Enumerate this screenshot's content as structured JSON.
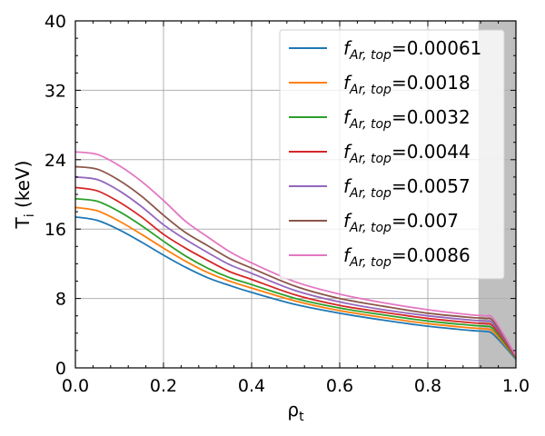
{
  "chart_data": {
    "type": "line",
    "title": "",
    "xlabel": "ρ_t",
    "xlabel_main": "ρ",
    "xlabel_sub": "t",
    "ylabel": "T_i (keV)",
    "ylabel_main": "T",
    "ylabel_sub": "i",
    "ylabel_rest": " (keV)",
    "xlim": [
      0.0,
      1.0
    ],
    "ylim": [
      0,
      40
    ],
    "x_ticks": [
      0.0,
      0.2,
      0.4,
      0.6,
      0.8,
      1.0
    ],
    "x_tick_labels": [
      "0.0",
      "0.2",
      "0.4",
      "0.6",
      "0.8",
      "1.0"
    ],
    "y_ticks": [
      0,
      8,
      16,
      24,
      32,
      40
    ],
    "y_tick_labels": [
      "0",
      "8",
      "16",
      "24",
      "32",
      "40"
    ],
    "grid": true,
    "shaded_region": {
      "x_from": 0.915,
      "x_to": 1.0,
      "color": "#bfbfbf"
    },
    "legend_position": "upper-right",
    "legend_prefix": "f",
    "legend_subscript": "Ar, top",
    "x": [
      0.0,
      0.05,
      0.1,
      0.15,
      0.2,
      0.25,
      0.3,
      0.35,
      0.4,
      0.5,
      0.6,
      0.7,
      0.8,
      0.9,
      0.93,
      0.95,
      1.0
    ],
    "series": [
      {
        "name": "f_{Ar,top}=0.00061",
        "value_label": "=0.00061",
        "color": "#1f77b4",
        "values": [
          17.4,
          17.0,
          15.9,
          14.5,
          13.0,
          11.6,
          10.4,
          9.5,
          8.7,
          7.3,
          6.3,
          5.5,
          4.8,
          4.3,
          4.2,
          3.8,
          1.0
        ]
      },
      {
        "name": "f_{Ar,top}=0.0018",
        "value_label": "=0.0018",
        "color": "#ff7f0e",
        "values": [
          18.5,
          18.1,
          16.9,
          15.4,
          13.8,
          12.3,
          11.0,
          10.0,
          9.2,
          7.7,
          6.6,
          5.8,
          5.1,
          4.6,
          4.5,
          4.1,
          1.1
        ]
      },
      {
        "name": "f_{Ar,top}=0.0032",
        "value_label": "=0.0032",
        "color": "#2ca02c",
        "values": [
          19.5,
          19.2,
          18.0,
          16.4,
          14.6,
          12.9,
          11.5,
          10.4,
          9.6,
          8.0,
          6.9,
          6.1,
          5.4,
          4.9,
          4.8,
          4.4,
          1.1
        ]
      },
      {
        "name": "f_{Ar,top}=0.0044",
        "value_label": "=0.0044",
        "color": "#d62728",
        "values": [
          20.8,
          20.4,
          19.1,
          17.4,
          15.4,
          13.8,
          12.4,
          11.1,
          10.2,
          8.4,
          7.2,
          6.4,
          5.7,
          5.2,
          5.1,
          4.7,
          1.2
        ]
      },
      {
        "name": "f_{Ar,top}=0.0057",
        "value_label": "=0.0057",
        "color": "#9467bd",
        "values": [
          22.0,
          21.7,
          20.4,
          18.6,
          16.5,
          14.8,
          13.3,
          11.9,
          10.9,
          8.9,
          7.6,
          6.7,
          6.0,
          5.5,
          5.4,
          5.0,
          1.3
        ]
      },
      {
        "name": "f_{Ar,top}=0.007",
        "value_label": "=0.007",
        "color": "#8c564b",
        "values": [
          23.2,
          22.9,
          21.6,
          19.8,
          17.6,
          15.6,
          14.1,
          12.6,
          11.5,
          9.4,
          8.0,
          7.1,
          6.3,
          5.8,
          5.7,
          5.3,
          1.3
        ]
      },
      {
        "name": "f_{Ar,top}=0.0086",
        "value_label": "=0.0086",
        "color": "#e377c2",
        "values": [
          24.9,
          24.6,
          23.3,
          21.5,
          19.3,
          16.9,
          15.1,
          13.4,
          12.1,
          9.9,
          8.5,
          7.5,
          6.7,
          6.1,
          6.0,
          5.6,
          1.4
        ]
      }
    ]
  }
}
